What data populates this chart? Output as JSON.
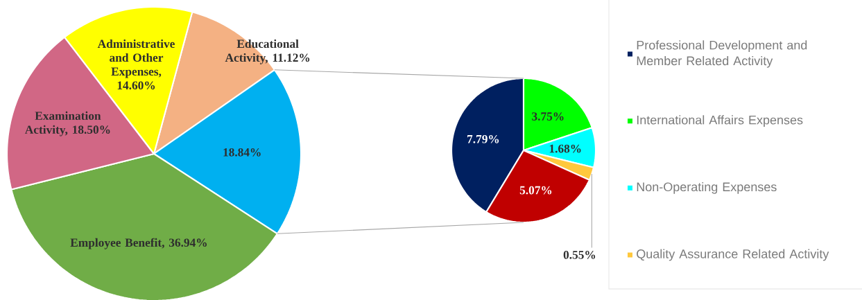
{
  "chart_data": [
    {
      "type": "pie",
      "categories": [
        null,
        null,
        null,
        null,
        null
      ],
      "values": [
        11.12,
        18.84,
        36.94,
        18.5,
        14.6
      ],
      "colors": [
        "#f4b183",
        "#00b0f0",
        "#70ad47",
        "#d16785",
        "#ffff00"
      ],
      "value_labels": [
        "Educational Activity, 11.12%",
        "18.84%",
        "Employee Benefit, 36.94%",
        "Examination Activity, 18.50%",
        "Administrative and Other Expenses, 14.60%"
      ]
    },
    {
      "type": "pie",
      "categories": [
        "Professional Development and Member Related Activity",
        "International Affairs Expenses",
        "Non-Operating Expenses",
        "Quality Assurance Related Activity",
        null
      ],
      "values": [
        7.79,
        3.75,
        1.68,
        0.55,
        5.07
      ],
      "colors": [
        "#002060",
        "#00ff00",
        "#00ffff",
        "#ffc83d",
        "#c00000"
      ],
      "value_labels": [
        "7.79%",
        "3.75%",
        "1.68%",
        "0.55%",
        "5.07%"
      ],
      "legend": "right"
    }
  ]
}
